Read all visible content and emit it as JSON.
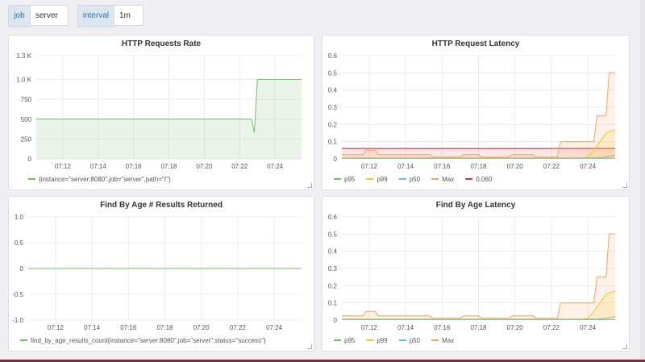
{
  "variables": [
    {
      "label": "job",
      "value": "server"
    },
    {
      "label": "interval",
      "value": "1m"
    }
  ],
  "colors": {
    "green": "#73bf69",
    "yellow": "#f2cc0c",
    "cyan": "#5fc6d8",
    "orange": "#f5a25d",
    "red": "#e02f44"
  },
  "chart_data": [
    {
      "type": "area",
      "title": "HTTP Requests Rate",
      "y_ticks": [
        "0",
        "250",
        "500",
        "750",
        "1.0 K",
        "1.3 K"
      ],
      "x_ticks": [
        "07:12",
        "07:14",
        "07:16",
        "07:18",
        "07:20",
        "07:22",
        "07:24"
      ],
      "xlim": [
        "07:10:30",
        "07:25:30"
      ],
      "ylim": [
        0,
        1250
      ],
      "series": [
        {
          "name": "{instance=\"server:8080\",job=\"server\",path=\"/\"}",
          "color": "green",
          "fill": true,
          "x": [
            "07:10:30",
            "07:22:40",
            "07:22:50",
            "07:23:00",
            "07:25:30"
          ],
          "y": [
            500,
            500,
            330,
            1000,
            1000
          ]
        }
      ]
    },
    {
      "type": "line",
      "title": "HTTP Request Latency",
      "y_ticks": [
        "0",
        "0.1",
        "0.2",
        "0.3",
        "0.4",
        "0.5",
        "0.6"
      ],
      "x_ticks": [
        "07:12",
        "07:14",
        "07:16",
        "07:18",
        "07:20",
        "07:22",
        "07:24"
      ],
      "xlim": [
        "07:10:30",
        "07:25:30"
      ],
      "ylim": [
        0,
        0.6
      ],
      "threshold": {
        "name": "0.060",
        "value": 0.06,
        "color": "red"
      },
      "series": [
        {
          "name": "p95",
          "color": "green",
          "fill": false,
          "x": [
            "07:10:30",
            "07:24:30",
            "07:25:00",
            "07:25:30"
          ],
          "y": [
            0.005,
            0.005,
            0.01,
            0.02
          ]
        },
        {
          "name": "p99",
          "color": "yellow",
          "fill": true,
          "x": [
            "07:10:30",
            "07:23:40",
            "07:24:00",
            "07:24:20",
            "07:24:40",
            "07:25:00",
            "07:25:30"
          ],
          "y": [
            0.005,
            0.005,
            0.01,
            0.05,
            0.1,
            0.15,
            0.17
          ]
        },
        {
          "name": "p50",
          "color": "cyan",
          "fill": false,
          "x": [
            "07:10:30",
            "07:25:30"
          ],
          "y": [
            0.003,
            0.003
          ]
        },
        {
          "name": "Max",
          "color": "orange",
          "fill": true,
          "x": [
            "07:10:30",
            "07:11:40",
            "07:11:50",
            "07:12:20",
            "07:12:30",
            "07:15:20",
            "07:15:30",
            "07:17:00",
            "07:17:10",
            "07:18:00",
            "07:18:10",
            "07:19:40",
            "07:19:50",
            "07:21:00",
            "07:21:10",
            "07:22:20",
            "07:22:30",
            "07:23:20",
            "07:23:30",
            "07:24:20",
            "07:24:30",
            "07:25:00",
            "07:25:10",
            "07:25:30"
          ],
          "y": [
            0.025,
            0.025,
            0.05,
            0.05,
            0.025,
            0.025,
            0.01,
            0.01,
            0.025,
            0.025,
            0.01,
            0.01,
            0.025,
            0.025,
            0.01,
            0.01,
            0.1,
            0.1,
            0.1,
            0.1,
            0.25,
            0.25,
            0.5,
            0.5
          ]
        }
      ]
    },
    {
      "type": "line",
      "title": "Find By Age # Results Returned",
      "y_ticks": [
        "-1.0",
        "-0.5",
        "0",
        "0.5",
        "1.0"
      ],
      "x_ticks": [
        "07:12",
        "07:14",
        "07:16",
        "07:18",
        "07:20",
        "07:22",
        "07:24"
      ],
      "xlim": [
        "07:10:30",
        "07:25:30"
      ],
      "ylim": [
        -1,
        1
      ],
      "series": [
        {
          "name": "find_by_age_results_count{instance=\"server:8080\",job=\"server\",status=\"success\"}",
          "color": "green",
          "fill": false,
          "x": [
            "07:10:30",
            "07:25:30"
          ],
          "y": [
            0,
            0
          ]
        }
      ]
    },
    {
      "type": "line",
      "title": "Find By Age Latency",
      "y_ticks": [
        "0",
        "0.1",
        "0.2",
        "0.3",
        "0.4",
        "0.5",
        "0.6"
      ],
      "x_ticks": [
        "07:12",
        "07:14",
        "07:16",
        "07:18",
        "07:20",
        "07:22",
        "07:24"
      ],
      "xlim": [
        "07:10:30",
        "07:25:30"
      ],
      "ylim": [
        0,
        0.6
      ],
      "series": [
        {
          "name": "p95",
          "color": "green",
          "fill": false,
          "x": [
            "07:10:30",
            "07:24:30",
            "07:25:00",
            "07:25:30"
          ],
          "y": [
            0.005,
            0.005,
            0.01,
            0.02
          ]
        },
        {
          "name": "p99",
          "color": "yellow",
          "fill": true,
          "x": [
            "07:10:30",
            "07:23:40",
            "07:24:00",
            "07:24:20",
            "07:24:40",
            "07:25:00",
            "07:25:30"
          ],
          "y": [
            0.005,
            0.005,
            0.01,
            0.05,
            0.1,
            0.15,
            0.17
          ]
        },
        {
          "name": "p50",
          "color": "cyan",
          "fill": false,
          "x": [
            "07:10:30",
            "07:25:30"
          ],
          "y": [
            0.003,
            0.003
          ]
        },
        {
          "name": "Max",
          "color": "orange",
          "fill": true,
          "x": [
            "07:10:30",
            "07:11:40",
            "07:11:50",
            "07:12:20",
            "07:12:30",
            "07:15:20",
            "07:15:30",
            "07:17:00",
            "07:17:10",
            "07:18:00",
            "07:18:10",
            "07:19:40",
            "07:19:50",
            "07:21:00",
            "07:21:10",
            "07:22:20",
            "07:22:30",
            "07:23:20",
            "07:23:30",
            "07:24:20",
            "07:24:30",
            "07:25:00",
            "07:25:10",
            "07:25:30"
          ],
          "y": [
            0.025,
            0.025,
            0.05,
            0.05,
            0.025,
            0.025,
            0.01,
            0.01,
            0.025,
            0.025,
            0.01,
            0.01,
            0.025,
            0.025,
            0.01,
            0.01,
            0.1,
            0.1,
            0.1,
            0.1,
            0.25,
            0.25,
            0.5,
            0.5
          ]
        }
      ]
    }
  ]
}
